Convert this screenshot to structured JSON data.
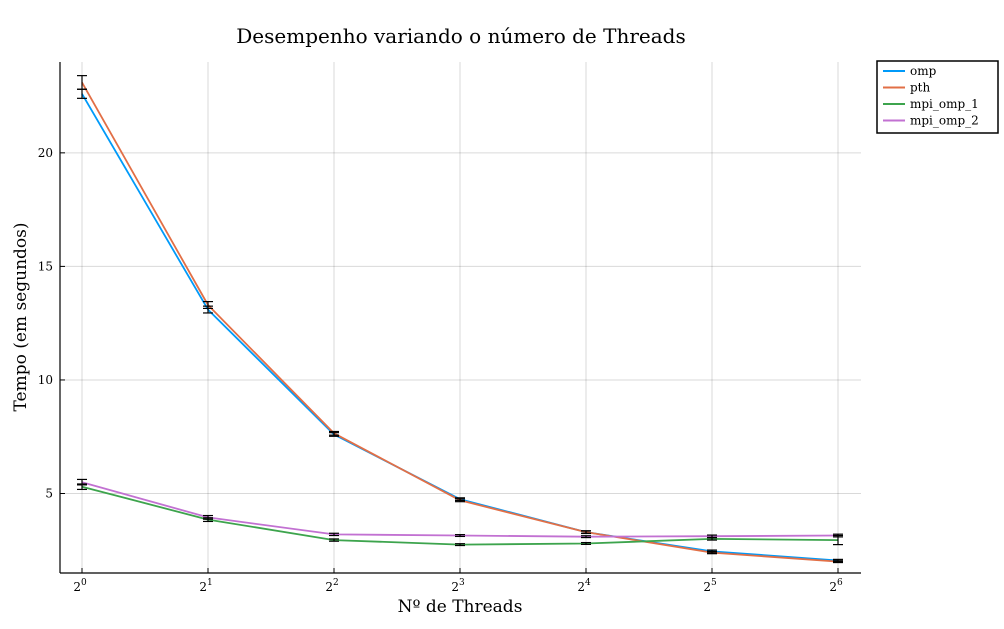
{
  "chart_data": {
    "type": "line",
    "title": "Desempenho variando o número de Threads",
    "xlabel": "Nº de Threads",
    "ylabel": "Tempo (em segundos)",
    "x_scale": "log2",
    "x": [
      1,
      2,
      4,
      8,
      16,
      32,
      64
    ],
    "x_tick_labels": [
      {
        "base": "2",
        "exp": "0"
      },
      {
        "base": "2",
        "exp": "1"
      },
      {
        "base": "2",
        "exp": "2"
      },
      {
        "base": "2",
        "exp": "3"
      },
      {
        "base": "2",
        "exp": "4"
      },
      {
        "base": "2",
        "exp": "5"
      },
      {
        "base": "2",
        "exp": "6"
      }
    ],
    "y_ticks": [
      5,
      10,
      15,
      20
    ],
    "ylim": [
      1.5,
      24
    ],
    "grid": true,
    "legend_position": "top-right outside",
    "error_bars": true,
    "series": [
      {
        "name": "omp",
        "color": "#009af9",
        "values": [
          22.6,
          13.1,
          7.6,
          4.75,
          3.3,
          2.45,
          2.05
        ],
        "err": [
          0.2,
          0.15,
          0.08,
          0.06,
          0.05,
          0.06,
          0.05
        ]
      },
      {
        "name": "pth",
        "color": "#e26f46",
        "values": [
          23.1,
          13.3,
          7.65,
          4.7,
          3.3,
          2.4,
          2.0
        ],
        "err": [
          0.3,
          0.15,
          0.08,
          0.06,
          0.06,
          0.05,
          0.04
        ]
      },
      {
        "name": "mpi_omp_1",
        "color": "#3da44d",
        "values": [
          5.3,
          3.85,
          2.95,
          2.75,
          2.8,
          3.0,
          2.95
        ],
        "err": [
          0.12,
          0.08,
          0.05,
          0.04,
          0.04,
          0.05,
          0.2
        ]
      },
      {
        "name": "mpi_omp_2",
        "color": "#c271d2",
        "values": [
          5.5,
          3.95,
          3.2,
          3.15,
          3.1,
          3.12,
          3.15
        ],
        "err": [
          0.12,
          0.08,
          0.05,
          0.04,
          0.04,
          0.05,
          0.06
        ]
      }
    ]
  }
}
